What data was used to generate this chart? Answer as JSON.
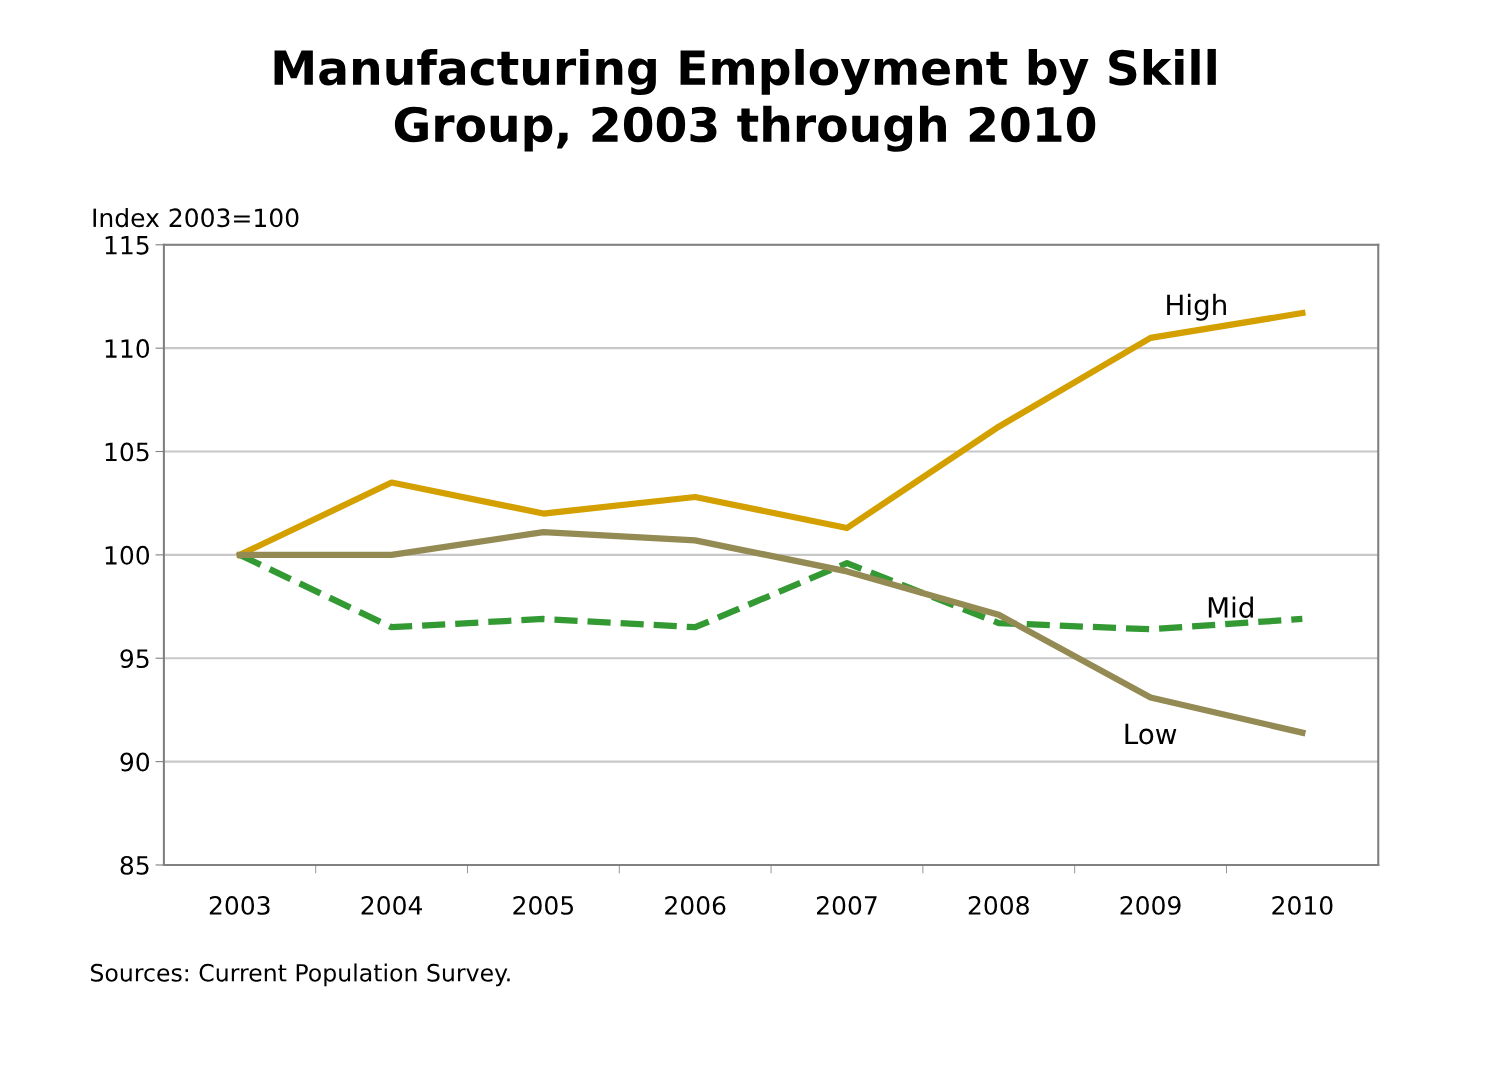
{
  "chart_data": {
    "type": "line",
    "title": "Manufacturing Employment by Skill\nGroup, 2003 through 2010",
    "ylabel": "Index 2003=100",
    "categories": [
      "2003",
      "2004",
      "2005",
      "2006",
      "2007",
      "2008",
      "2009",
      "2010"
    ],
    "series": [
      {
        "name": "High",
        "color": "#d4a000",
        "line_style": "solid",
        "values": [
          100,
          103.5,
          102.0,
          102.8,
          101.3,
          106.2,
          110.5,
          111.7
        ]
      },
      {
        "name": "Mid",
        "color": "#339933",
        "line_style": "dashed",
        "values": [
          100,
          96.5,
          96.9,
          96.5,
          99.6,
          96.7,
          96.4,
          96.9
        ]
      },
      {
        "name": "Low",
        "color": "#948a54",
        "line_style": "solid",
        "values": [
          100,
          100,
          101.1,
          100.7,
          99.2,
          97.1,
          93.1,
          91.4
        ]
      }
    ],
    "ylim": [
      85,
      115
    ],
    "yticks": [
      85,
      90,
      95,
      100,
      105,
      110,
      115
    ],
    "grid": "y",
    "legend": false,
    "marker": "none",
    "annotations": [
      "Sources: Current Population Survey."
    ]
  }
}
